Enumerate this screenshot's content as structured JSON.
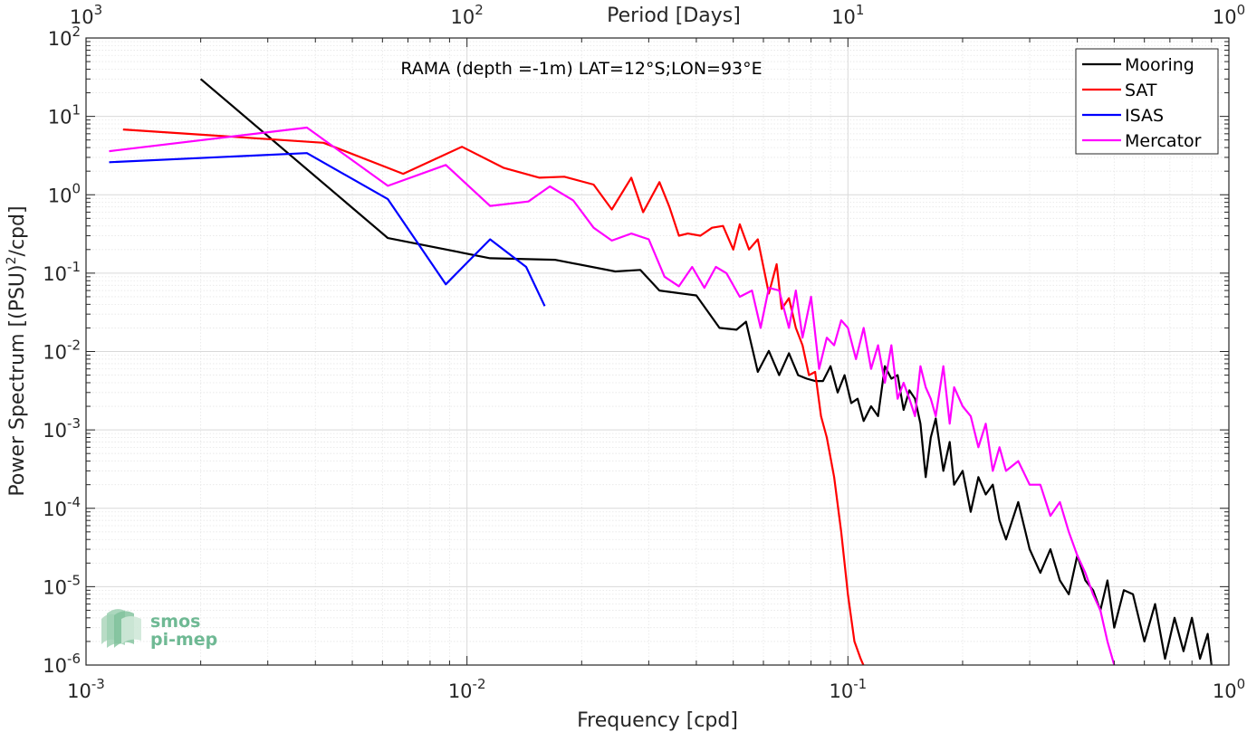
{
  "chart_data": {
    "type": "line",
    "title": "RAMA (depth =-1m) LAT=12°S;LON=93°E",
    "xlabel": "Frequency [cpd]",
    "ylabel": "Power Spectrum [(PSU)²/cpd]",
    "ylabel_parts": {
      "pre": "Power Spectrum [(PSU)",
      "sup": "2",
      "post": "/cpd]"
    },
    "top_xlabel": "Period [Days]",
    "xscale": "log",
    "yscale": "log",
    "xlim": [
      0.001,
      1
    ],
    "ylim": [
      1e-06,
      100
    ],
    "grid": true,
    "legend_position": "top-right",
    "x_ticks": [
      {
        "value": 0.001,
        "base": "10",
        "exp": "-3"
      },
      {
        "value": 0.01,
        "base": "10",
        "exp": "-2"
      },
      {
        "value": 0.1,
        "base": "10",
        "exp": "-1"
      },
      {
        "value": 1,
        "base": "10",
        "exp": "0"
      }
    ],
    "top_ticks": [
      {
        "value": 0.001,
        "base": "10",
        "exp": "3"
      },
      {
        "value": 0.01,
        "base": "10",
        "exp": "2"
      },
      {
        "value": 0.1,
        "base": "10",
        "exp": "1"
      },
      {
        "value": 1,
        "base": "10",
        "exp": "0"
      }
    ],
    "y_ticks": [
      {
        "value": 1e-06,
        "base": "10",
        "exp": "-6"
      },
      {
        "value": 1e-05,
        "base": "10",
        "exp": "-5"
      },
      {
        "value": 0.0001,
        "base": "10",
        "exp": "-4"
      },
      {
        "value": 0.001,
        "base": "10",
        "exp": "-3"
      },
      {
        "value": 0.01,
        "base": "10",
        "exp": "-2"
      },
      {
        "value": 0.1,
        "base": "10",
        "exp": "-1"
      },
      {
        "value": 1,
        "base": "10",
        "exp": "0"
      },
      {
        "value": 10,
        "base": "10",
        "exp": "1"
      },
      {
        "value": 100,
        "base": "10",
        "exp": "2"
      }
    ],
    "series": [
      {
        "name": "Mooring",
        "color": "#000000",
        "x": [
          0.002,
          0.0062,
          0.0115,
          0.017,
          0.0245,
          0.0285,
          0.032,
          0.04,
          0.046,
          0.051,
          0.054,
          0.058,
          0.062,
          0.066,
          0.07,
          0.074,
          0.078,
          0.082,
          0.086,
          0.09,
          0.094,
          0.098,
          0.102,
          0.106,
          0.11,
          0.115,
          0.12,
          0.125,
          0.13,
          0.135,
          0.14,
          0.145,
          0.15,
          0.155,
          0.16,
          0.165,
          0.17,
          0.178,
          0.185,
          0.19,
          0.2,
          0.21,
          0.22,
          0.23,
          0.24,
          0.25,
          0.26,
          0.28,
          0.3,
          0.32,
          0.34,
          0.36,
          0.38,
          0.4,
          0.42,
          0.44,
          0.46,
          0.48,
          0.5,
          0.53,
          0.56,
          0.6,
          0.64,
          0.68,
          0.72,
          0.76,
          0.8,
          0.84,
          0.88,
          0.9
        ],
        "y": [
          30,
          0.28,
          0.155,
          0.148,
          0.105,
          0.11,
          0.06,
          0.052,
          0.02,
          0.019,
          0.024,
          0.0055,
          0.0102,
          0.005,
          0.0095,
          0.005,
          0.0045,
          0.0042,
          0.0042,
          0.0065,
          0.003,
          0.005,
          0.0022,
          0.0025,
          0.0013,
          0.002,
          0.0015,
          0.0065,
          0.0045,
          0.005,
          0.0018,
          0.0032,
          0.0025,
          0.0012,
          0.00025,
          0.0008,
          0.0014,
          0.0003,
          0.0007,
          0.0002,
          0.0003,
          9e-05,
          0.00025,
          0.00015,
          0.0002,
          7e-05,
          4e-05,
          0.00012,
          3e-05,
          1.5e-05,
          3e-05,
          1.2e-05,
          8e-06,
          2.5e-05,
          1.2e-05,
          9e-06,
          5e-06,
          1.2e-05,
          3e-06,
          9e-06,
          8e-06,
          2e-06,
          6e-06,
          1.2e-06,
          4e-06,
          1.5e-06,
          4e-06,
          1.2e-06,
          2.5e-06,
          1e-06
        ]
      },
      {
        "name": "SAT",
        "color": "#ff0000",
        "x": [
          0.00125,
          0.0042,
          0.0068,
          0.0097,
          0.0125,
          0.0155,
          0.018,
          0.0215,
          0.024,
          0.027,
          0.029,
          0.032,
          0.034,
          0.036,
          0.038,
          0.041,
          0.044,
          0.047,
          0.05,
          0.052,
          0.055,
          0.058,
          0.062,
          0.065,
          0.067,
          0.07,
          0.073,
          0.076,
          0.079,
          0.082,
          0.085,
          0.088,
          0.092,
          0.096,
          0.1,
          0.104,
          0.108,
          0.112
        ],
        "y": [
          6.8,
          4.6,
          1.85,
          4.1,
          2.2,
          1.65,
          1.7,
          1.35,
          0.65,
          1.65,
          0.6,
          1.45,
          0.7,
          0.3,
          0.32,
          0.3,
          0.38,
          0.4,
          0.2,
          0.42,
          0.2,
          0.27,
          0.055,
          0.13,
          0.035,
          0.048,
          0.02,
          0.012,
          0.005,
          0.0055,
          0.0015,
          0.0008,
          0.00025,
          5e-05,
          8e-06,
          2e-06,
          1.2e-06,
          8e-07
        ]
      },
      {
        "name": "ISAS",
        "color": "#0000ff",
        "x": [
          0.00115,
          0.0038,
          0.0062,
          0.0088,
          0.0115,
          0.0143,
          0.016
        ],
        "y": [
          2.6,
          3.4,
          0.88,
          0.072,
          0.27,
          0.12,
          0.038
        ]
      },
      {
        "name": "Mercator",
        "color": "#ff00ff",
        "x": [
          0.00115,
          0.0038,
          0.0062,
          0.0088,
          0.0115,
          0.0145,
          0.0165,
          0.019,
          0.0215,
          0.024,
          0.027,
          0.03,
          0.033,
          0.036,
          0.039,
          0.042,
          0.045,
          0.048,
          0.052,
          0.056,
          0.059,
          0.062,
          0.066,
          0.07,
          0.073,
          0.076,
          0.08,
          0.084,
          0.088,
          0.092,
          0.096,
          0.1,
          0.105,
          0.11,
          0.115,
          0.12,
          0.125,
          0.13,
          0.135,
          0.14,
          0.145,
          0.15,
          0.155,
          0.16,
          0.165,
          0.17,
          0.178,
          0.185,
          0.19,
          0.2,
          0.21,
          0.22,
          0.23,
          0.24,
          0.25,
          0.26,
          0.28,
          0.3,
          0.32,
          0.34,
          0.36,
          0.38,
          0.4,
          0.42,
          0.44,
          0.46,
          0.48,
          0.5
        ],
        "y": [
          3.6,
          7.2,
          1.3,
          2.4,
          0.72,
          0.82,
          1.28,
          0.85,
          0.38,
          0.26,
          0.32,
          0.27,
          0.09,
          0.068,
          0.12,
          0.065,
          0.12,
          0.1,
          0.05,
          0.06,
          0.02,
          0.065,
          0.06,
          0.02,
          0.06,
          0.015,
          0.05,
          0.006,
          0.015,
          0.012,
          0.025,
          0.02,
          0.008,
          0.02,
          0.006,
          0.012,
          0.004,
          0.012,
          0.0025,
          0.004,
          0.0025,
          0.0015,
          0.0065,
          0.0035,
          0.0025,
          0.0015,
          0.0065,
          0.0012,
          0.0035,
          0.002,
          0.0015,
          0.0006,
          0.0012,
          0.0003,
          0.0006,
          0.0003,
          0.0004,
          0.0002,
          0.0002,
          8e-05,
          0.00012,
          5e-05,
          2.5e-05,
          1.5e-05,
          8e-06,
          5e-06,
          2e-06,
          1e-06
        ]
      }
    ]
  },
  "watermark": {
    "line1": "smos",
    "line2": "pi-mep"
  }
}
